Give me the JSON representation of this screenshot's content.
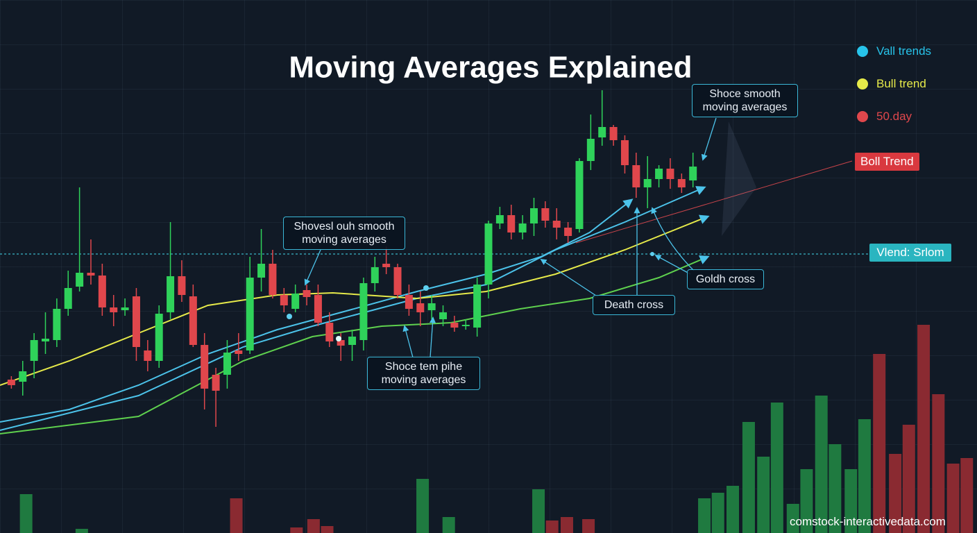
{
  "chart_data": {
    "type": "candlestick",
    "title": "Moving Averages Explained",
    "xlim": [
      -1,
      85
    ],
    "ylim": [
      0,
      600
    ],
    "up_color": "#2fd25a",
    "down_color": "#e0474c",
    "candles": {
      "open": [
        113,
        110,
        140,
        168,
        170,
        215,
        247,
        267,
        263,
        217,
        213,
        233,
        155,
        140,
        210,
        262,
        233,
        163,
        120,
        120,
        155,
        155,
        260,
        280,
        235,
        215,
        242,
        235,
        195,
        170,
        163,
        170,
        252,
        280,
        275,
        235,
        223,
        213,
        200,
        195,
        190,
        188,
        250,
        338,
        350,
        325,
        338,
        360,
        342,
        332,
        330,
        428,
        462,
        477,
        458,
        422,
        390,
        402,
        417,
        402,
        400
      ],
      "high": [
        118,
        140,
        180,
        210,
        230,
        270,
        390,
        315,
        280,
        235,
        230,
        245,
        170,
        220,
        340,
        285,
        250,
        180,
        130,
        170,
        180,
        290,
        330,
        300,
        245,
        250,
        250,
        250,
        210,
        180,
        185,
        260,
        290,
        305,
        280,
        250,
        240,
        235,
        220,
        205,
        200,
        260,
        342,
        362,
        365,
        350,
        375,
        370,
        360,
        340,
        432,
        495,
        530,
        480,
        465,
        440,
        435,
        422,
        432,
        410,
        440
      ],
      "low": [
        100,
        90,
        115,
        150,
        160,
        205,
        240,
        250,
        205,
        190,
        205,
        140,
        125,
        130,
        200,
        225,
        160,
        70,
        45,
        100,
        140,
        150,
        240,
        230,
        210,
        210,
        220,
        190,
        160,
        140,
        140,
        155,
        240,
        265,
        230,
        205,
        190,
        200,
        190,
        182,
        185,
        175,
        230,
        330,
        315,
        315,
        320,
        332,
        315,
        310,
        325,
        415,
        450,
        450,
        410,
        375,
        360,
        390,
        388,
        382,
        390
      ],
      "close": [
        105,
        125,
        170,
        172,
        215,
        245,
        267,
        263,
        217,
        210,
        217,
        160,
        140,
        208,
        262,
        235,
        163,
        100,
        97,
        152,
        150,
        260,
        280,
        235,
        220,
        237,
        232,
        195,
        168,
        162,
        175,
        252,
        275,
        275,
        235,
        215,
        210,
        223,
        210,
        188,
        192,
        250,
        338,
        350,
        325,
        338,
        360,
        342,
        332,
        320,
        428,
        460,
        477,
        458,
        422,
        390,
        402,
        417,
        402,
        390,
        420
      ]
    },
    "lines": [
      {
        "color": "#4cc3ea",
        "x": [
          -1,
          5.1,
          11.2,
          17.3,
          23.4,
          29.5,
          35.7,
          41.8,
          46.6,
          50.9,
          54.6
        ],
        "values": [
          52,
          70,
          105,
          150,
          185,
          212,
          240,
          265,
          290,
          325,
          372
        ]
      },
      {
        "color": "#4cc3ea",
        "x": [
          -1,
          11.2,
          20.4,
          26.5,
          35.7,
          41.8,
          47.9,
          54,
          61
        ],
        "values": [
          40,
          90,
          160,
          190,
          230,
          250,
          300,
          340,
          390
        ]
      },
      {
        "color": "#e6ea4a",
        "x": [
          -1,
          5.1,
          11.2,
          17.3,
          23.4,
          28.3,
          35.7,
          41.8,
          47.9,
          54,
          61.3
        ],
        "values": [
          105,
          140,
          180,
          220,
          235,
          238,
          230,
          240,
          265,
          300,
          348
        ]
      },
      {
        "color": "#5fd14e",
        "x": [
          -1,
          11.2,
          20.4,
          26.5,
          32.6,
          38.7,
          44.8,
          50.9,
          57,
          61.3
        ],
        "values": [
          35,
          60,
          140,
          175,
          190,
          195,
          215,
          230,
          260,
          290
        ]
      }
    ],
    "volume": {
      "ylim": [
        0,
        320
      ],
      "x": [
        1.3,
        6.2,
        19.8,
        25.1,
        26.6,
        27.8,
        36.2,
        38.5,
        46.4,
        47.6,
        48.9,
        50.8,
        61,
        62.2,
        63.5,
        64.9,
        66.2,
        67.4,
        68.8,
        70,
        71.3,
        72.5,
        73.9,
        75.1,
        76.4,
        77.8,
        79,
        80.3,
        81.6,
        82.9,
        84.1
      ],
      "values": [
        56,
        6,
        50,
        8,
        20,
        10,
        78,
        23,
        63,
        18,
        23,
        20,
        50,
        58,
        68,
        160,
        110,
        188,
        42,
        92,
        198,
        128,
        92,
        164,
        258,
        114,
        156,
        300,
        200,
        100,
        108
      ],
      "colors": [
        "#1f7a40",
        "#1f7a40",
        "#8a2a31",
        "#8a2a31",
        "#8a2a31",
        "#8a2a31",
        "#1f7a40",
        "#1f7a40",
        "#1f7a40",
        "#8a2a31",
        "#8a2a31",
        "#8a2a31",
        "#1f7a40",
        "#1f7a40",
        "#1f7a40",
        "#1f7a40",
        "#1f7a40",
        "#1f7a40",
        "#1f7a40",
        "#1f7a40",
        "#1f7a40",
        "#1f7a40",
        "#1f7a40",
        "#1f7a40",
        "#8a2a31",
        "#8a2a31",
        "#8a2a31",
        "#8a2a31",
        "#8a2a31",
        "#8a2a31",
        "#8a2a31"
      ]
    },
    "legend": [
      {
        "label": "Vall trends",
        "color": "#27c3ea"
      },
      {
        "label": "Bull trend",
        "color": "#e6ea4a"
      },
      {
        "label": "50.day",
        "color": "#e0474c"
      }
    ],
    "annotations": [
      "Shoce smooth moving averages",
      "Shovesl ouh smooth moving averages",
      "Shoce tem pihe moving averages",
      "Death cross",
      "Goldh cross"
    ],
    "tags": [
      "Boll Trend",
      "Vlend: Srlom"
    ],
    "source": "comstock-interactivedata.com"
  }
}
